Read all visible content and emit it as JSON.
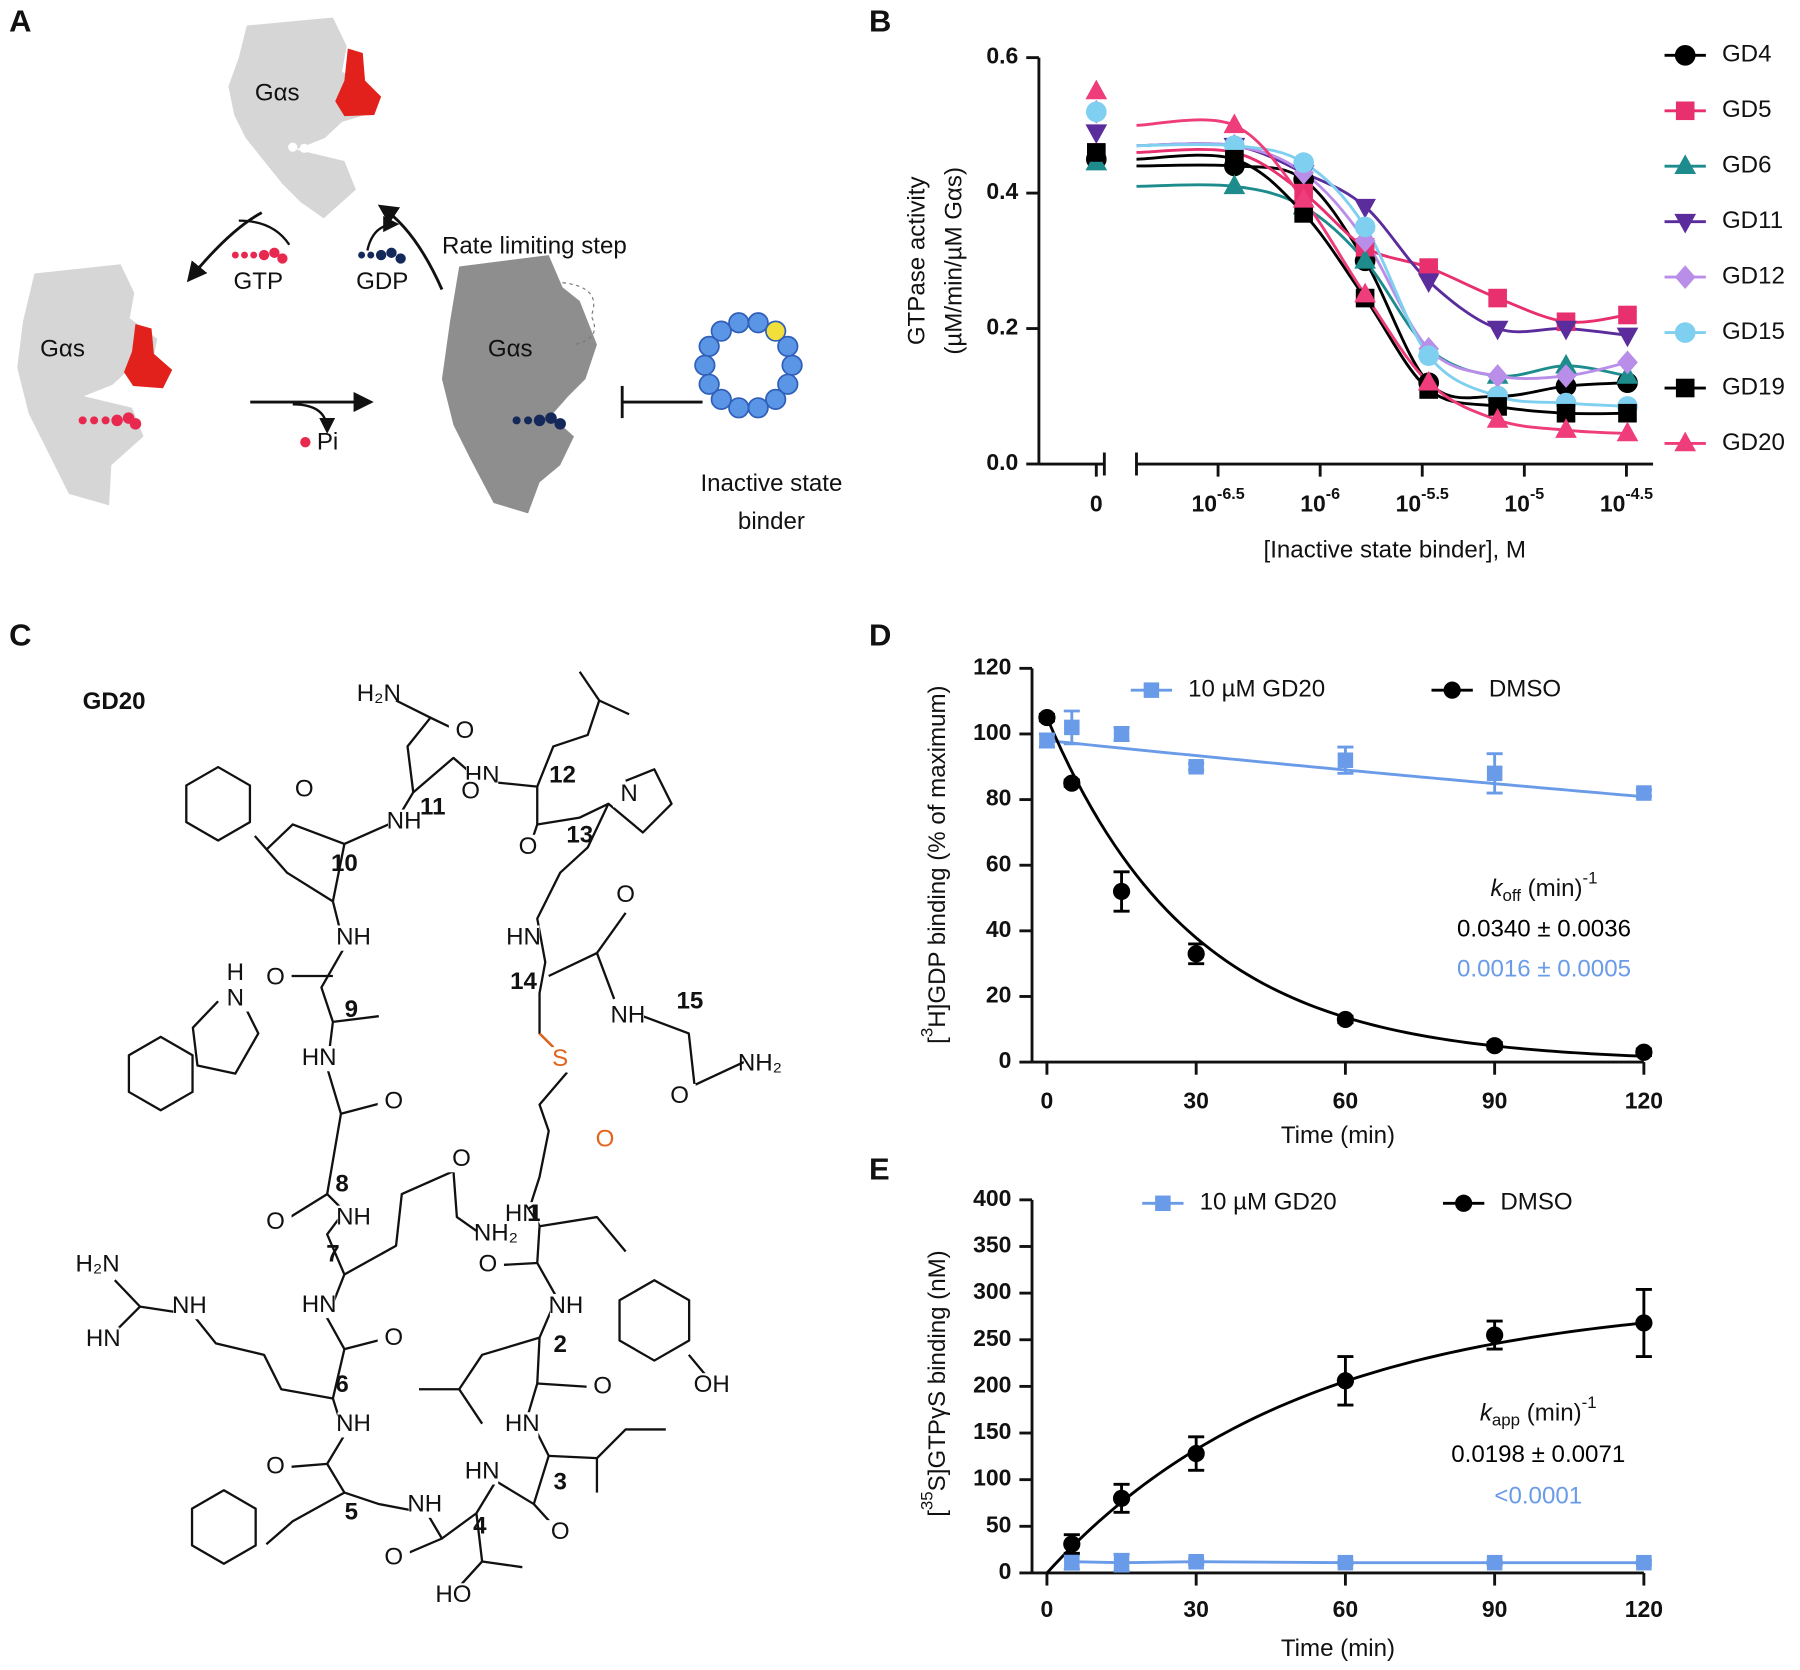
{
  "panel_a": {
    "label": "A",
    "protein": [
      "Gαs",
      "Gαs",
      "Gαs"
    ],
    "gtp": "GTP",
    "gdp": "GDP",
    "step": "Rate limiting step",
    "pi": "Pi",
    "binder": [
      "Inactive state",
      "binder"
    ]
  },
  "panel_c": {
    "label": "C",
    "title": "GD20",
    "residues": [
      "1",
      "2",
      "3",
      "4",
      "5",
      "6",
      "7",
      "8",
      "9",
      "10",
      "11",
      "12",
      "13",
      "14",
      "15"
    ],
    "atoms": [
      "H₂N",
      "O",
      "HN",
      "O",
      "O",
      "NH",
      "N",
      "O",
      "NH",
      "HN",
      "O",
      "O",
      "H",
      "N",
      "HN",
      "NH",
      "S",
      "O",
      "NH₂",
      "O",
      "O",
      "O",
      "NH",
      "HN",
      "O",
      "NH₂",
      "H₂N",
      "NH",
      "HN",
      "O",
      "NH",
      "HN",
      "O",
      "O",
      "OH",
      "NH",
      "HN",
      "O",
      "NH",
      "HN",
      "O",
      "O",
      "HO"
    ]
  },
  "chart_data": [
    {
      "panel": "B",
      "type": "line",
      "ylabel": [
        "GTPase activity",
        "(µM/min/µM Gαs)"
      ],
      "xlabel": "[Inactive state binder], M",
      "log_x": true,
      "x_break": true,
      "x": [
        0,
        3.8e-07,
        8.3e-07,
        1.66e-06,
        3.4e-06,
        7.4e-06,
        1.6e-05,
        3.2e-05
      ],
      "xlim": [
        1.26e-07,
        4.27e-05
      ],
      "xticks": [
        0,
        {
          "value": 3.162e-07,
          "label": "10",
          "exponent": "-6.5"
        },
        {
          "value": 1e-06,
          "label": "10",
          "exponent": "-6"
        },
        {
          "value": 3.162e-06,
          "label": "10",
          "exponent": "-5.5"
        },
        {
          "value": 1e-05,
          "label": "10",
          "exponent": "-5"
        },
        {
          "value": 3.162e-05,
          "label": "10",
          "exponent": "-4.5"
        }
      ],
      "ylim": [
        0,
        0.6
      ],
      "yticks": [
        {
          "value": 0,
          "label": "0.0"
        },
        {
          "value": 0.2,
          "label": "0.2"
        },
        {
          "value": 0.4,
          "label": "0.4"
        },
        {
          "value": 0.6,
          "label": "0.6"
        }
      ],
      "series": [
        {
          "name": "GD4",
          "color": "#000000",
          "marker": "circle",
          "values": [
            0.45,
            0.44,
            0.42,
            0.3,
            0.12,
            0.1,
            0.115,
            0.12
          ]
        },
        {
          "name": "GD5",
          "color": "#e8306e",
          "marker": "square",
          "values": [
            0.46,
            0.46,
            0.4,
            0.32,
            0.29,
            0.245,
            0.21,
            0.22
          ]
        },
        {
          "name": "GD6",
          "color": "#1e8c8c",
          "marker": "triangle",
          "values": [
            0.445,
            0.41,
            0.38,
            0.3,
            0.17,
            0.13,
            0.145,
            0.13
          ]
        },
        {
          "name": "GD11",
          "color": "#5b2c9c",
          "marker": "triangle-down",
          "values": [
            0.49,
            0.47,
            0.43,
            0.38,
            0.27,
            0.2,
            0.2,
            0.19
          ]
        },
        {
          "name": "GD12",
          "color": "#b98ee8",
          "marker": "diamond",
          "values": [
            0.52,
            0.47,
            0.43,
            0.33,
            0.17,
            0.13,
            0.13,
            0.15
          ]
        },
        {
          "name": "GD15",
          "color": "#7fd0f0",
          "marker": "circle",
          "values": [
            0.52,
            0.47,
            0.445,
            0.35,
            0.16,
            0.1,
            0.09,
            0.085
          ]
        },
        {
          "name": "GD19",
          "color": "#000000",
          "marker": "square",
          "values": [
            0.46,
            0.45,
            0.37,
            0.245,
            0.11,
            0.085,
            0.075,
            0.075
          ]
        },
        {
          "name": "GD20",
          "color": "#ef3c7a",
          "marker": "triangle",
          "values": [
            0.55,
            0.5,
            0.39,
            0.25,
            0.12,
            0.065,
            0.05,
            0.045
          ]
        }
      ]
    },
    {
      "panel": "D",
      "type": "scatter",
      "ylabel": [
        "[",
        "3",
        "H]GDP binding (% of maximum)"
      ],
      "xlabel": "Time (min)",
      "x": [
        0,
        5,
        15,
        30,
        60,
        90,
        120
      ],
      "xlim": [
        -3,
        120
      ],
      "xticks": [
        0,
        30,
        60,
        90,
        120
      ],
      "ylim": [
        0,
        120
      ],
      "yticks": [
        0,
        20,
        40,
        60,
        80,
        100,
        120
      ],
      "rate_label": [
        "k",
        "off",
        " (min)",
        "-1"
      ],
      "series": [
        {
          "name": "10 µM GD20",
          "color": "#6a9be8",
          "marker": "square",
          "values": [
            98,
            102,
            100,
            90,
            92,
            88,
            82
          ],
          "errors": [
            2,
            5,
            2,
            1,
            4,
            6,
            1
          ],
          "rate": {
            "value": 0.0016,
            "label": "0.0016 ± 0.0005"
          }
        },
        {
          "name": "DMSO",
          "color": "#000000",
          "marker": "circle",
          "values": [
            105,
            85,
            52,
            33,
            13,
            5,
            3
          ],
          "errors": [
            1,
            1,
            6,
            3,
            1,
            1,
            1
          ],
          "rate": {
            "value": 0.034,
            "label": "0.0340 ± 0.0036"
          }
        }
      ]
    },
    {
      "panel": "E",
      "type": "scatter",
      "ylabel": [
        "[",
        "35",
        "S]GTPγS binding (nM)"
      ],
      "xlabel": "Time (min)",
      "x": [
        5,
        15,
        30,
        60,
        90,
        120
      ],
      "xlim": [
        -3,
        120
      ],
      "xticks": [
        0,
        30,
        60,
        90,
        120
      ],
      "ylim": [
        0,
        400
      ],
      "yticks": [
        0,
        50,
        100,
        150,
        200,
        250,
        300,
        350,
        400
      ],
      "rate_label": [
        "k",
        "app",
        " (min)",
        "-1"
      ],
      "series": [
        {
          "name": "10 µM GD20",
          "color": "#6a9be8",
          "marker": "square",
          "values": [
            12,
            11,
            12,
            11,
            11,
            11
          ],
          "errors": [
            8,
            9,
            3,
            2,
            2,
            2
          ],
          "rate": {
            "label": "<0.0001"
          }
        },
        {
          "name": "DMSO",
          "color": "#000000",
          "marker": "circle",
          "values": [
            31,
            80,
            128,
            206,
            255,
            268
          ],
          "errors": [
            10,
            15,
            18,
            26,
            15,
            36
          ],
          "rate": {
            "value": 0.0198,
            "label": "0.0198 ± 0.0071"
          }
        }
      ]
    }
  ]
}
